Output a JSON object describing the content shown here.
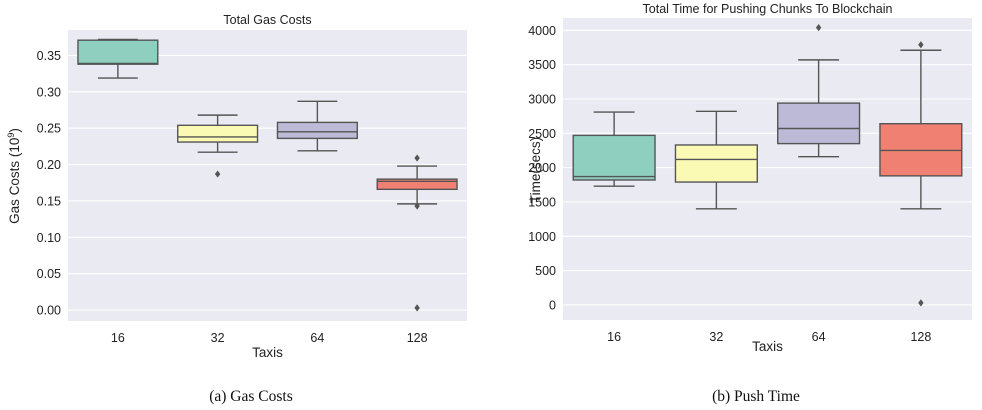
{
  "chart_data": [
    {
      "type": "box",
      "title": "Total Gas Costs",
      "xlabel": "Taxis",
      "ylabel": "Gas Costs (10",
      "ylabel_superscript": "9",
      "ylabel_suffix": ")",
      "caption": "(a)  Gas Costs",
      "ylim": [
        -0.015,
        0.385
      ],
      "yticks": [
        0.0,
        0.05,
        0.1,
        0.15,
        0.2,
        0.25,
        0.3,
        0.35
      ],
      "ytick_labels": [
        "0.00",
        "0.05",
        "0.10",
        "0.15",
        "0.20",
        "0.25",
        "0.30",
        "0.35"
      ],
      "categories": [
        "16",
        "32",
        "64",
        "128"
      ],
      "colors": [
        "#8ecfc0",
        "#fbfab5",
        "#bcbad7",
        "#f08072"
      ],
      "boxes": [
        {
          "whisker_low": 0.319,
          "q1": 0.338,
          "median": 0.339,
          "q3": 0.371,
          "whisker_high": 0.372,
          "outliers": []
        },
        {
          "whisker_low": 0.217,
          "q1": 0.231,
          "median": 0.238,
          "q3": 0.254,
          "whisker_high": 0.268,
          "outliers": [
            0.187
          ]
        },
        {
          "whisker_low": 0.219,
          "q1": 0.236,
          "median": 0.245,
          "q3": 0.258,
          "whisker_high": 0.287,
          "outliers": []
        },
        {
          "whisker_low": 0.146,
          "q1": 0.166,
          "median": 0.177,
          "q3": 0.18,
          "whisker_high": 0.198,
          "outliers": [
            0.143,
            0.209,
            0.003
          ]
        }
      ],
      "grid": true
    },
    {
      "type": "box",
      "title": "Total Time for Pushing Chunks To Blockchain",
      "xlabel": "Taxis",
      "ylabel": "Time(secs)",
      "caption": "(b)  Push Time",
      "ylim": [
        -220,
        4180
      ],
      "yticks": [
        0,
        500,
        1000,
        1500,
        2000,
        2500,
        3000,
        3500,
        4000
      ],
      "ytick_labels": [
        "0",
        "500",
        "1000",
        "1500",
        "2000",
        "2500",
        "3000",
        "3500",
        "4000"
      ],
      "categories": [
        "16",
        "32",
        "64",
        "128"
      ],
      "colors": [
        "#8ecfc0",
        "#fbfab5",
        "#bcbad7",
        "#f08072"
      ],
      "boxes": [
        {
          "whisker_low": 1730,
          "q1": 1820,
          "median": 1870,
          "q3": 2470,
          "whisker_high": 2810,
          "outliers": []
        },
        {
          "whisker_low": 1400,
          "q1": 1790,
          "median": 2120,
          "q3": 2330,
          "whisker_high": 2820,
          "outliers": []
        },
        {
          "whisker_low": 2160,
          "q1": 2350,
          "median": 2570,
          "q3": 2940,
          "whisker_high": 3570,
          "outliers": [
            4040
          ]
        },
        {
          "whisker_low": 1400,
          "q1": 1880,
          "median": 2250,
          "q3": 2640,
          "whisker_high": 3710,
          "outliers": [
            3790,
            30
          ]
        }
      ],
      "grid": true
    }
  ]
}
